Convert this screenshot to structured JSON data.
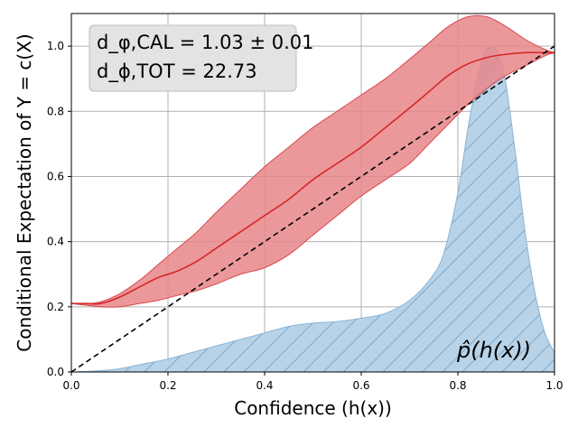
{
  "chart_data": {
    "type": "area",
    "title": "",
    "xlabel": "Confidence (h(x))",
    "ylabel": "Conditional Expectation of Y = c(X)",
    "xlim": [
      0.0,
      1.0
    ],
    "ylim": [
      0.0,
      1.1
    ],
    "grid": true,
    "x_ticks": [
      "0.0",
      "0.2",
      "0.4",
      "0.6",
      "0.8",
      "1.0"
    ],
    "y_ticks": [
      "0.0",
      "0.2",
      "0.4",
      "0.6",
      "0.8",
      "1.0"
    ],
    "annotations": {
      "stats_line1": "d_φ,CAL = 1.03 ± 0.01",
      "stats_line2": "d_ϕ,TOT = 22.73",
      "density_label": "p̂(h(x))"
    },
    "colors": {
      "band_fill": "#e8868a",
      "band_edge": "#d9474d",
      "mean_line": "#d62728",
      "density_fill": "#b8d3e8",
      "density_edge": "#88b4d8",
      "hatch": "#7fa9cb",
      "diagonal": "#000000",
      "grid": "#b0b0b0",
      "legend_box": "#e3e3e3"
    },
    "series": [
      {
        "kind": "mean",
        "x": [
          0.0,
          0.03,
          0.06,
          0.1,
          0.14,
          0.18,
          0.22,
          0.26,
          0.3,
          0.35,
          0.4,
          0.45,
          0.5,
          0.55,
          0.6,
          0.65,
          0.7,
          0.74,
          0.78,
          0.82,
          0.86,
          0.9,
          0.94,
          0.98,
          1.0
        ],
        "y": [
          0.21,
          0.21,
          0.21,
          0.23,
          0.26,
          0.29,
          0.31,
          0.34,
          0.38,
          0.43,
          0.48,
          0.53,
          0.59,
          0.64,
          0.69,
          0.75,
          0.81,
          0.86,
          0.91,
          0.945,
          0.965,
          0.975,
          0.98,
          0.98,
          0.98
        ]
      },
      {
        "kind": "band_upper",
        "x": [
          0.0,
          0.03,
          0.06,
          0.1,
          0.14,
          0.18,
          0.22,
          0.26,
          0.3,
          0.35,
          0.4,
          0.45,
          0.5,
          0.55,
          0.6,
          0.65,
          0.7,
          0.74,
          0.78,
          0.82,
          0.86,
          0.9,
          0.94,
          0.98,
          1.0
        ],
        "y": [
          0.21,
          0.21,
          0.215,
          0.24,
          0.28,
          0.33,
          0.38,
          0.43,
          0.49,
          0.56,
          0.63,
          0.69,
          0.75,
          0.8,
          0.85,
          0.9,
          0.96,
          1.01,
          1.06,
          1.09,
          1.09,
          1.06,
          1.02,
          0.99,
          0.98
        ]
      },
      {
        "kind": "band_lower",
        "x": [
          0.0,
          0.03,
          0.06,
          0.1,
          0.14,
          0.18,
          0.22,
          0.26,
          0.3,
          0.35,
          0.4,
          0.45,
          0.5,
          0.55,
          0.6,
          0.65,
          0.7,
          0.74,
          0.78,
          0.82,
          0.86,
          0.9,
          0.94,
          0.98,
          1.0
        ],
        "y": [
          0.21,
          0.205,
          0.2,
          0.2,
          0.21,
          0.22,
          0.235,
          0.25,
          0.27,
          0.3,
          0.32,
          0.36,
          0.42,
          0.48,
          0.54,
          0.59,
          0.64,
          0.7,
          0.76,
          0.82,
          0.87,
          0.91,
          0.94,
          0.97,
          0.98
        ]
      },
      {
        "kind": "density",
        "x": [
          0.0,
          0.05,
          0.1,
          0.15,
          0.2,
          0.25,
          0.3,
          0.35,
          0.4,
          0.45,
          0.5,
          0.55,
          0.6,
          0.65,
          0.7,
          0.74,
          0.77,
          0.8,
          0.82,
          0.84,
          0.855,
          0.87,
          0.885,
          0.9,
          0.92,
          0.94,
          0.96,
          0.98,
          1.0
        ],
        "y": [
          0.0,
          0.003,
          0.01,
          0.025,
          0.04,
          0.06,
          0.08,
          0.1,
          0.12,
          0.14,
          0.15,
          0.155,
          0.165,
          0.18,
          0.22,
          0.28,
          0.36,
          0.55,
          0.74,
          0.9,
          0.98,
          1.0,
          0.97,
          0.88,
          0.66,
          0.42,
          0.24,
          0.12,
          0.06
        ]
      },
      {
        "kind": "diagonal",
        "x": [
          0.0,
          1.0
        ],
        "y": [
          0.0,
          1.0
        ]
      }
    ]
  }
}
